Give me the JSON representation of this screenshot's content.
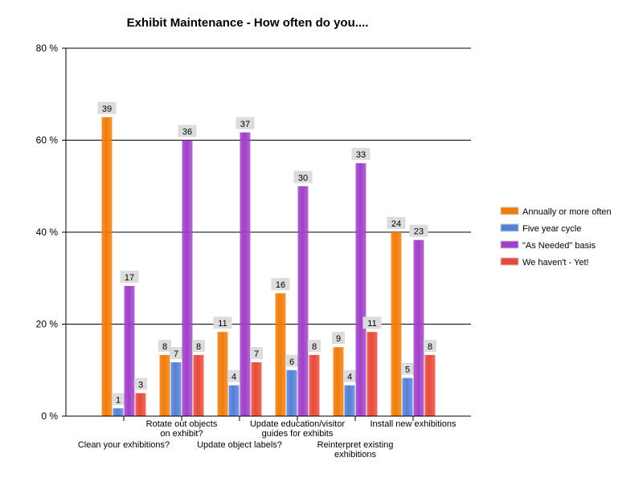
{
  "chart_data": {
    "type": "bar",
    "title": "Exhibit Maintenance - How often do you....",
    "xlabel": "",
    "ylabel": "",
    "ylim": [
      0,
      80
    ],
    "yticks": [
      0,
      20,
      40,
      60,
      80
    ],
    "ytick_labels": [
      "0 %",
      "20 %",
      "40 %",
      "60 %",
      "80 %"
    ],
    "grid": true,
    "legend_position": "right",
    "categories": [
      [
        "Clean your exhibitions?"
      ],
      [
        "Rotate out objects",
        "on exhibit?"
      ],
      [
        "Update object labels?"
      ],
      [
        "Update education/visitor",
        "guides for exhibits"
      ],
      [
        "Reinterpret existing",
        "exhibitions"
      ],
      [
        "Install new exhibitions"
      ]
    ],
    "series": [
      {
        "name": "Annually or more often",
        "color": "#f07c0a",
        "values_percent": [
          65.0,
          13.3,
          18.3,
          26.7,
          15.0,
          40.0
        ],
        "labels": [
          39,
          8,
          11,
          16,
          9,
          24
        ]
      },
      {
        "name": "Five year cycle",
        "color": "#5580d8",
        "values_percent": [
          1.7,
          11.7,
          6.7,
          10.0,
          6.7,
          8.3
        ],
        "labels": [
          1,
          7,
          4,
          6,
          4,
          5
        ]
      },
      {
        "name": "\"As Needed\" basis",
        "color": "#a040c8",
        "values_percent": [
          28.3,
          60.0,
          61.7,
          50.0,
          55.0,
          38.3
        ],
        "labels": [
          17,
          36,
          37,
          30,
          33,
          23
        ]
      },
      {
        "name": "We haven't - Yet!",
        "color": "#e84a38",
        "values_percent": [
          5.0,
          13.3,
          11.7,
          13.3,
          18.3,
          13.3
        ],
        "labels": [
          3,
          8,
          7,
          8,
          11,
          8
        ]
      }
    ]
  }
}
